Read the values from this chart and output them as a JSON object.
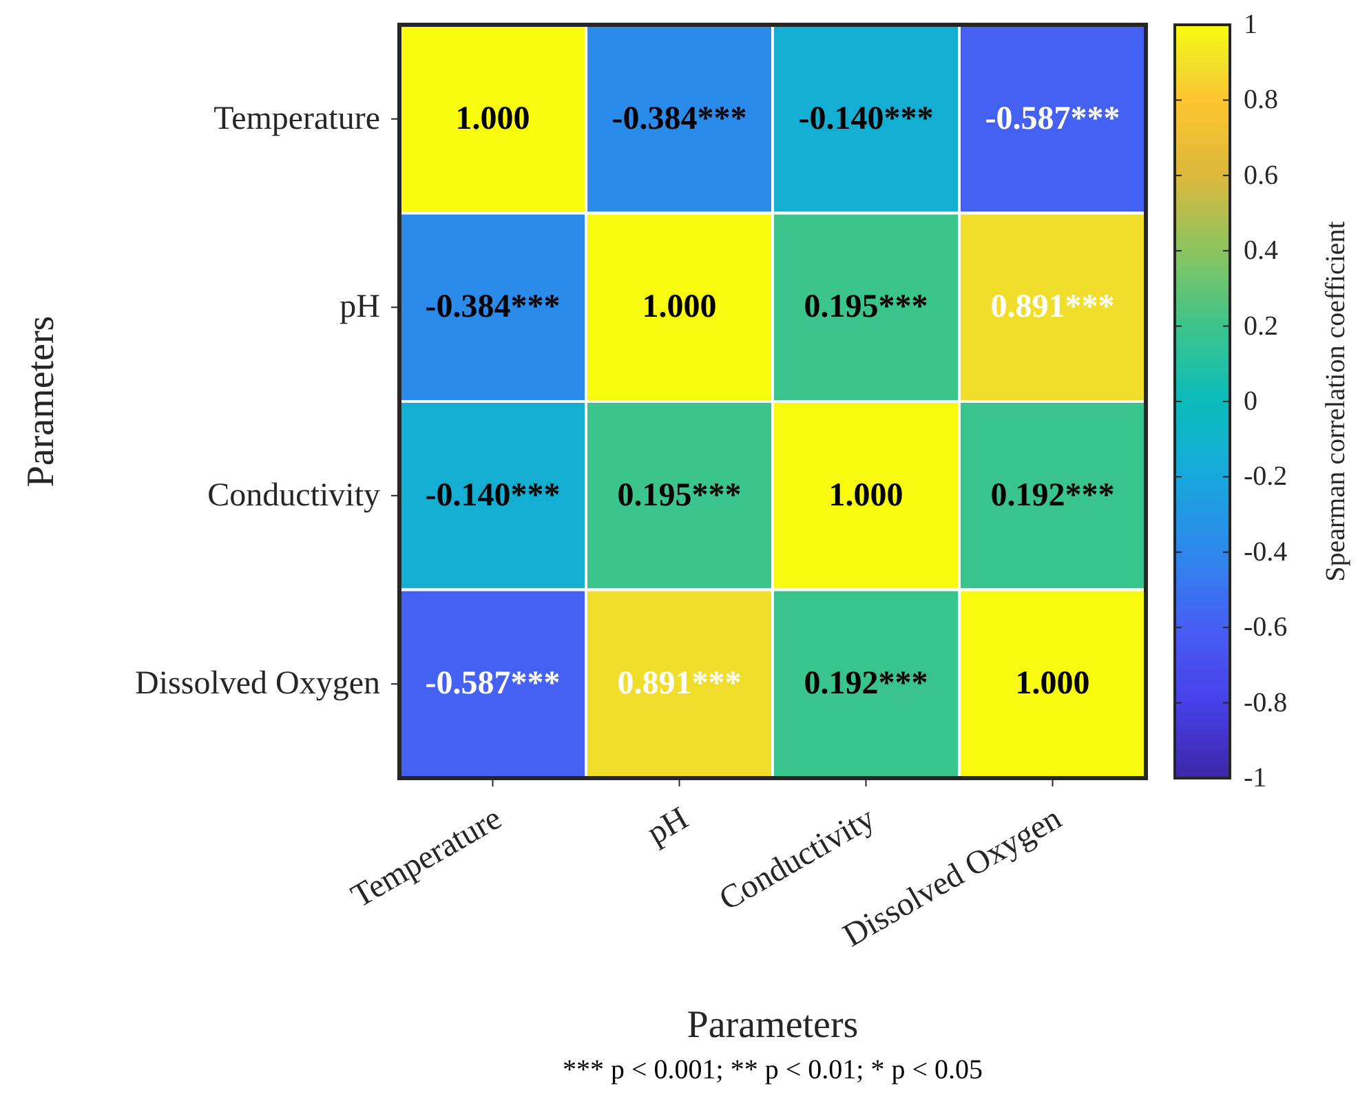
{
  "chart_data": {
    "type": "heatmap",
    "xlabel": "Parameters",
    "ylabel": "Parameters",
    "clabel": "Spearman correlation coefficient",
    "categories": [
      "Temperature",
      "pH",
      "Conductivity",
      "Dissolved Oxygen"
    ],
    "y_categories": [
      "Temperature",
      "pH",
      "Conductivity",
      "Dissolved Oxygen"
    ],
    "cells": [
      [
        1.0,
        -0.384,
        -0.14,
        -0.587
      ],
      [
        -0.384,
        1.0,
        0.195,
        0.891
      ],
      [
        -0.14,
        0.195,
        1.0,
        0.192
      ],
      [
        -0.587,
        0.891,
        0.192,
        1.0
      ]
    ],
    "cell_labels": [
      [
        "1.000",
        "-0.384***",
        "-0.140***",
        "-0.587***"
      ],
      [
        "-0.384***",
        "1.000",
        "0.195***",
        "0.891***"
      ],
      [
        "-0.140***",
        "0.195***",
        "1.000",
        "0.192***"
      ],
      [
        "-0.587***",
        "0.891***",
        "0.192***",
        "1.000"
      ]
    ],
    "clim": [
      -1,
      1
    ],
    "cticks": [
      -1,
      -0.8,
      -0.6,
      -0.4,
      -0.2,
      0,
      0.2,
      0.4,
      0.6,
      0.8,
      1
    ],
    "annotations": [
      "*** p < 0.001; ** p < 0.01; * p < 0.05"
    ]
  }
}
